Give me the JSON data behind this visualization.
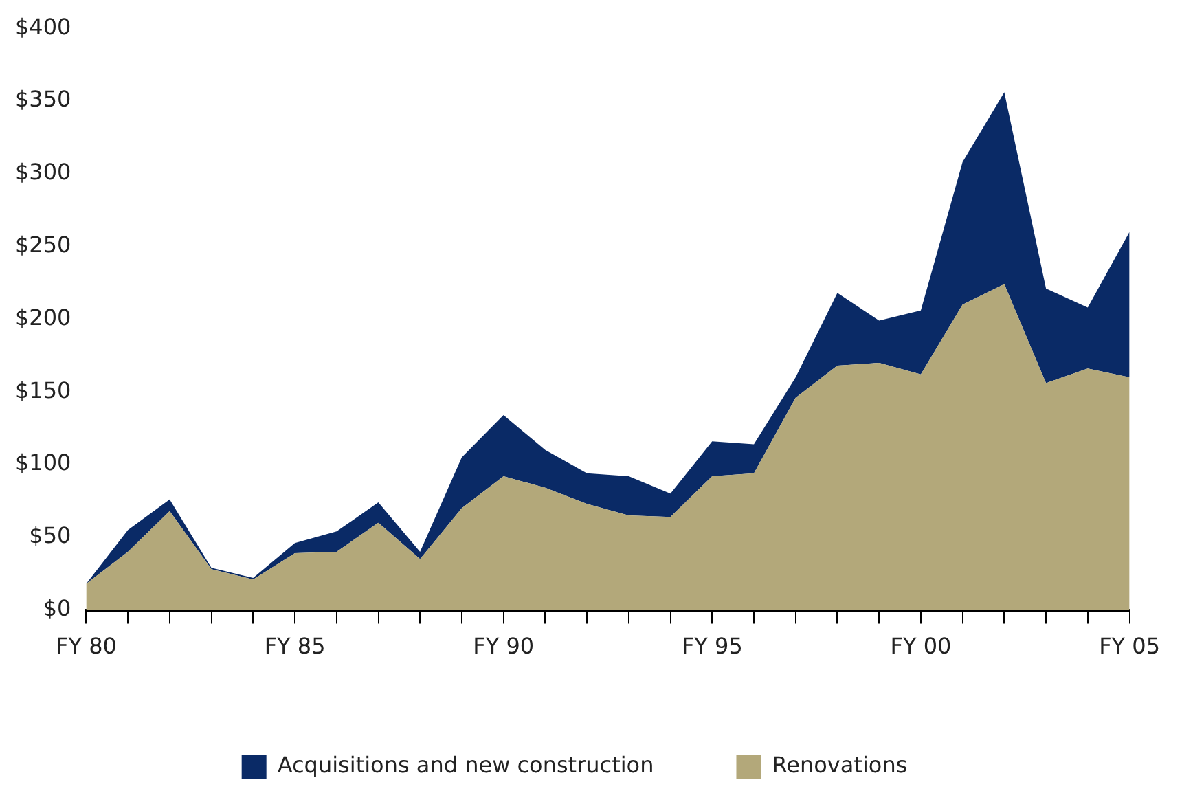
{
  "chart_data": {
    "type": "area",
    "stacked": true,
    "categories": [
      "FY 80",
      null,
      null,
      null,
      null,
      "FY 85",
      null,
      null,
      null,
      null,
      "FY 90",
      null,
      null,
      null,
      null,
      "FY 95",
      null,
      null,
      null,
      null,
      "FY 00",
      null,
      null,
      null,
      null,
      "FY 05"
    ],
    "series": [
      {
        "name": "Renovations",
        "color": "#b3a87a",
        "values": [
          18,
          40,
          68,
          28,
          21,
          39,
          40,
          60,
          35,
          70,
          92,
          84,
          73,
          65,
          64,
          92,
          94,
          146,
          168,
          170,
          162,
          210,
          224,
          156,
          166,
          160
        ]
      },
      {
        "name": "Acquisitions and new construction",
        "color": "#0a2a66",
        "values": [
          0,
          15,
          8,
          1,
          1,
          7,
          14,
          14,
          5,
          35,
          42,
          26,
          21,
          27,
          16,
          24,
          20,
          14,
          50,
          29,
          44,
          98,
          132,
          65,
          42,
          100
        ]
      }
    ],
    "ylim": [
      0,
      400
    ],
    "yticks": [
      {
        "value": 0,
        "label": "$0"
      },
      {
        "value": 50,
        "label": "$50"
      },
      {
        "value": 100,
        "label": "$100"
      },
      {
        "value": 150,
        "label": "$150"
      },
      {
        "value": 200,
        "label": "$200"
      },
      {
        "value": 250,
        "label": "$250"
      },
      {
        "value": 300,
        "label": "$300"
      },
      {
        "value": 350,
        "label": "$350"
      },
      {
        "value": 400,
        "label": "$400"
      }
    ],
    "grid": false,
    "legend": "bottom"
  }
}
